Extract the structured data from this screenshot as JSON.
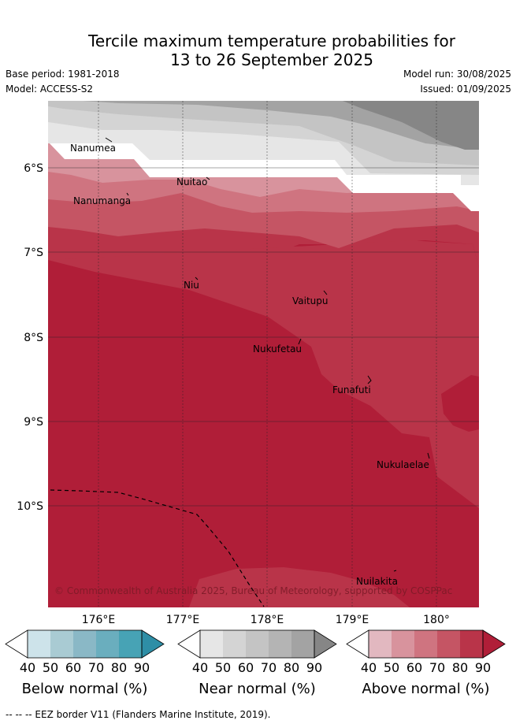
{
  "title_line1": "Tercile maximum temperature probabilities for",
  "title_line2": "13 to 26 September 2025",
  "base_period": "Base period: 1981-2018",
  "model": "Model: ACCESS-S2",
  "model_run": "Model run: 30/08/2025",
  "issued": "Issued: 01/09/2025",
  "latitude_labels": [
    "6°S",
    "7°S",
    "8°S",
    "9°S",
    "10°S"
  ],
  "longitude_labels": [
    "176°E",
    "177°E",
    "178°E",
    "179°E",
    "180°"
  ],
  "places": [
    "Nanumea",
    "Nuitao",
    "Nanumanga",
    "Niu",
    "Vaitupu",
    "Nukufetau",
    "Funafuti",
    "Nukulaelae",
    "Nuilakita"
  ],
  "credit": "© Commonwealth of Australia 2025, Bureau of Meteorology, supported by COSPPac",
  "colorbars": [
    {
      "title": "Below normal (%)",
      "ticks": [
        "40",
        "50",
        "60",
        "70",
        "80",
        "90"
      ],
      "colors": [
        "#ffffff",
        "#cde3ea",
        "#a9cbd3",
        "#8ab8c6",
        "#6aaebe",
        "#47a3b5",
        "#2e8ea6"
      ]
    },
    {
      "title": "Near normal (%)",
      "ticks": [
        "40",
        "50",
        "60",
        "70",
        "80",
        "90"
      ],
      "colors": [
        "#ffffff",
        "#e6e6e6",
        "#d4d4d4",
        "#c4c4c4",
        "#b4b4b4",
        "#a3a3a3",
        "#868686"
      ]
    },
    {
      "title": "Above normal (%)",
      "ticks": [
        "40",
        "50",
        "60",
        "70",
        "80",
        "90"
      ],
      "colors": [
        "#ffffff",
        "#e2b8c0",
        "#d8939d",
        "#cf7480",
        "#c55564",
        "#b93449",
        "#b01e38"
      ]
    }
  ],
  "footer": "--  --  -- EEZ border V11 (Flanders Marine Institute, 2019)."
}
